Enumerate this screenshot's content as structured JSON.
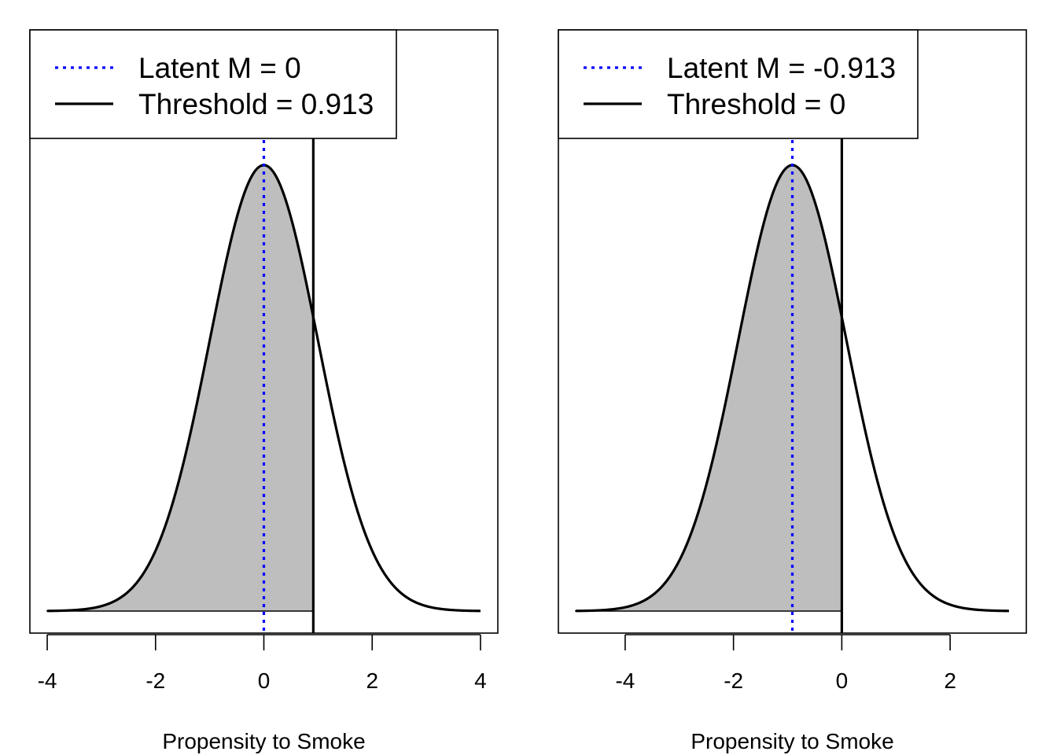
{
  "chart_data": [
    {
      "type": "area",
      "distribution": "standard normal density",
      "mean": 0,
      "sd": 1,
      "threshold": 0.913,
      "shaded_region": "x <= threshold",
      "x_range": [
        -4,
        4
      ],
      "xlim": [
        -4.32,
        4.32
      ],
      "xticks": [
        -4,
        -2,
        0,
        2,
        4
      ],
      "xtick_labels": [
        "-4",
        "-2",
        "0",
        "2",
        "4"
      ],
      "xlabel": "Propensity to Smoke",
      "ylabel": "",
      "legend_position": "top-left",
      "legend": [
        {
          "label": "Latent M = 0",
          "style": "dotted",
          "color": "#0000ff"
        },
        {
          "label": "Threshold = 0.913",
          "style": "solid",
          "color": "#000000"
        }
      ]
    },
    {
      "type": "area",
      "distribution": "standard normal density",
      "mean": -0.913,
      "sd": 1,
      "threshold": 0,
      "shaded_region": "x <= threshold",
      "x_range": [
        -4.913,
        3.087
      ],
      "xlim": [
        -5.233,
        3.407
      ],
      "xticks": [
        -4,
        -2,
        0,
        2
      ],
      "xtick_labels": [
        "-4",
        "-2",
        "0",
        "2"
      ],
      "xlabel": "Propensity to Smoke",
      "ylabel": "",
      "legend_position": "top-left",
      "legend": [
        {
          "label": "Latent M = -0.913",
          "style": "dotted",
          "color": "#0000ff"
        },
        {
          "label": "Threshold = 0",
          "style": "solid",
          "color": "#000000"
        }
      ]
    }
  ],
  "colors": {
    "fill": "#bebebe",
    "curve": "#000000",
    "mean_line": "#0000ff",
    "threshold_line": "#000000"
  }
}
